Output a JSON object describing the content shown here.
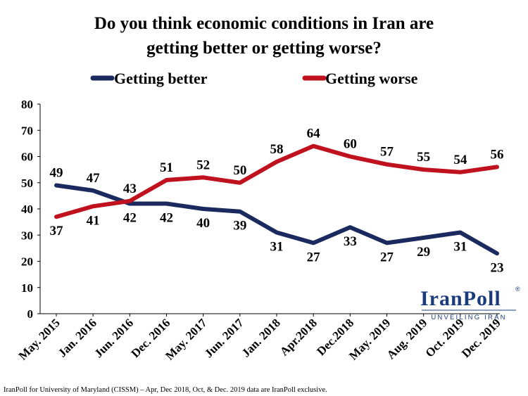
{
  "colors": {
    "better": "#1b2a5e",
    "worse": "#c0111f",
    "logo": "#1b3c7a",
    "axis": "#000000",
    "grid": "#d9d9d9"
  },
  "chart_data": {
    "type": "line",
    "title_lines": [
      "Do you think economic conditions in Iran are",
      "getting better or getting worse?"
    ],
    "categories": [
      "May. 2015",
      "Jan. 2016",
      "Jun. 2016",
      "Dec. 2016",
      "May. 2017",
      "Jun. 2017",
      "Jan. 2018",
      "Apr.2018",
      "Dec.2018",
      "May. 2019",
      "Aug. 2019",
      "Oct. 2019",
      "Dec. 2019"
    ],
    "series": [
      {
        "name": "Getting better",
        "color_key": "better",
        "values": [
          49,
          47,
          42,
          42,
          40,
          39,
          31,
          27,
          33,
          27,
          29,
          31,
          23
        ]
      },
      {
        "name": "Getting worse",
        "color_key": "worse",
        "values": [
          37,
          41,
          43,
          51,
          52,
          50,
          58,
          64,
          60,
          57,
          55,
          54,
          56
        ]
      }
    ],
    "ylim": [
      0,
      80
    ],
    "yticks": [
      "0",
      "10",
      "20",
      "30",
      "40",
      "50",
      "60",
      "70",
      "80"
    ],
    "grid": false,
    "legend_position": "top"
  },
  "logo": {
    "main": "IranPoll",
    "reg": "®",
    "sub": "UNVEILING IRAN"
  },
  "footnote": "IranPoll for University of Maryland (CISSM) – Apr, Dec 2018,  Oct, & Dec. 2019  data are IranPoll  exclusive."
}
